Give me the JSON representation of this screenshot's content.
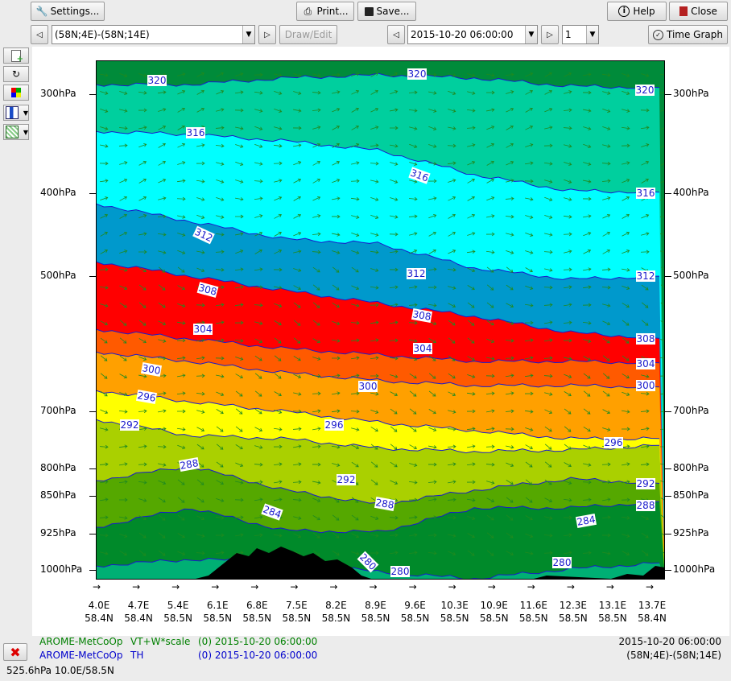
{
  "toolbar": {
    "settings_label": "Settings...",
    "print_label": "Print...",
    "save_label": "Save...",
    "help_label": "Help",
    "close_label": "Close",
    "cross_section_value": "(58N;4E)-(58N;14E)",
    "draw_edit_label": "Draw/Edit",
    "time_value": "2015-10-20 06:00:00",
    "step_value": "1",
    "time_graph_label": "Time Graph"
  },
  "icons": {
    "settings": "wrench-icon",
    "print": "printer-icon",
    "save": "floppy-disk-icon",
    "help": "info-icon",
    "close": "exit-door-icon",
    "time_graph": "clock-icon",
    "new": "new-document-icon",
    "refresh": "refresh-icon",
    "colors": "color-palette-icon",
    "remove": "red-x-icon"
  },
  "colors": {
    "model_green": "#008000",
    "model_blue": "#0000cc",
    "contour_line": "#1a1acc",
    "terrain": "#000000"
  },
  "plot": {
    "pressure_levels": [
      "300hPa",
      "400hPa",
      "500hPa",
      "700hPa",
      "800hPa",
      "850hPa",
      "925hPa",
      "1000hPa"
    ],
    "x_labels": [
      {
        "lon": "4.0E",
        "lat": "58.4N"
      },
      {
        "lon": "4.7E",
        "lat": "58.4N"
      },
      {
        "lon": "5.4E",
        "lat": "58.5N"
      },
      {
        "lon": "6.1E",
        "lat": "58.5N"
      },
      {
        "lon": "6.8E",
        "lat": "58.5N"
      },
      {
        "lon": "7.5E",
        "lat": "58.5N"
      },
      {
        "lon": "8.2E",
        "lat": "58.5N"
      },
      {
        "lon": "8.9E",
        "lat": "58.5N"
      },
      {
        "lon": "9.6E",
        "lat": "58.5N"
      },
      {
        "lon": "10.3E",
        "lat": "58.5N"
      },
      {
        "lon": "10.9E",
        "lat": "58.5N"
      },
      {
        "lon": "11.6E",
        "lat": "58.5N"
      },
      {
        "lon": "12.3E",
        "lat": "58.5N"
      },
      {
        "lon": "13.1E",
        "lat": "58.5N"
      },
      {
        "lon": "13.7E",
        "lat": "58.4N"
      }
    ],
    "wind_arrow_glyph": "→",
    "contours": [
      {
        "value": "320",
        "color": "#008b3a"
      },
      {
        "value": "316",
        "color": "#00cf9e"
      },
      {
        "value": "312",
        "color": "#00ffff"
      },
      {
        "value": "308",
        "color": "#0099cc"
      },
      {
        "value": "304",
        "color": "#ff0000"
      },
      {
        "value": "300",
        "color": "#ff5a00"
      },
      {
        "value": "296",
        "color": "#ffa000"
      },
      {
        "value": "292",
        "color": "#ffff00"
      },
      {
        "value": "288",
        "color": "#aad000"
      },
      {
        "value": "284",
        "color": "#55a800"
      },
      {
        "value": "280",
        "color": "#008a2a"
      },
      {
        "value": "",
        "color": "#00b074"
      }
    ],
    "contour_labels": [
      "320",
      "320",
      "320",
      "316",
      "316",
      "316",
      "312",
      "312",
      "312",
      "308",
      "308",
      "308",
      "304",
      "304",
      "304",
      "300",
      "300",
      "300",
      "296",
      "296",
      "296",
      "292",
      "292",
      "292",
      "288",
      "288",
      "288",
      "284",
      "284",
      "280",
      "280",
      "280"
    ]
  },
  "status": {
    "line1_model": "AROME-MetCoOp",
    "line1_field": "VT+W*scale",
    "line1_time": "(0) 2015-10-20 06:00:00",
    "line2_model": "AROME-MetCoOp",
    "line2_field": "TH",
    "line2_time": "(0) 2015-10-20 06:00:00",
    "right_time": "2015-10-20 06:00:00",
    "right_section": "(58N;4E)-(58N;14E)",
    "cursor_readout": "525.6hPa 10.0E/58.5N"
  }
}
